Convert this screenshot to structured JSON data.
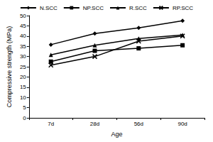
{
  "chart_data": {
    "type": "line",
    "x_label": "Age",
    "y_label": "Compressive strength (MPa)",
    "categories": [
      "7d",
      "28d",
      "56d",
      "90d"
    ],
    "series": [
      {
        "name": "N.SCC",
        "color": "#000000",
        "marker": "diamond",
        "line_style": "solid",
        "values": [
          35.8,
          41.2,
          44.0,
          47.5
        ]
      },
      {
        "name": "NP.SCC",
        "color": "#000000",
        "marker": "square",
        "line_style": "solid",
        "values": [
          27.5,
          32.8,
          34.0,
          35.5
        ]
      },
      {
        "name": "R.SCC",
        "color": "#000000",
        "marker": "triangle",
        "line_style": "solid",
        "values": [
          30.8,
          35.5,
          38.8,
          40.5
        ]
      },
      {
        "name": "RP.SCC",
        "color": "#000000",
        "marker": "x",
        "line_style": "solid",
        "values": [
          25.8,
          30.0,
          37.5,
          40.0
        ]
      }
    ],
    "ylim": [
      0,
      50
    ],
    "yticks": [
      0,
      5,
      10,
      15,
      20,
      25,
      30,
      35,
      40,
      45,
      50
    ],
    "grid": false,
    "legend": "top"
  }
}
